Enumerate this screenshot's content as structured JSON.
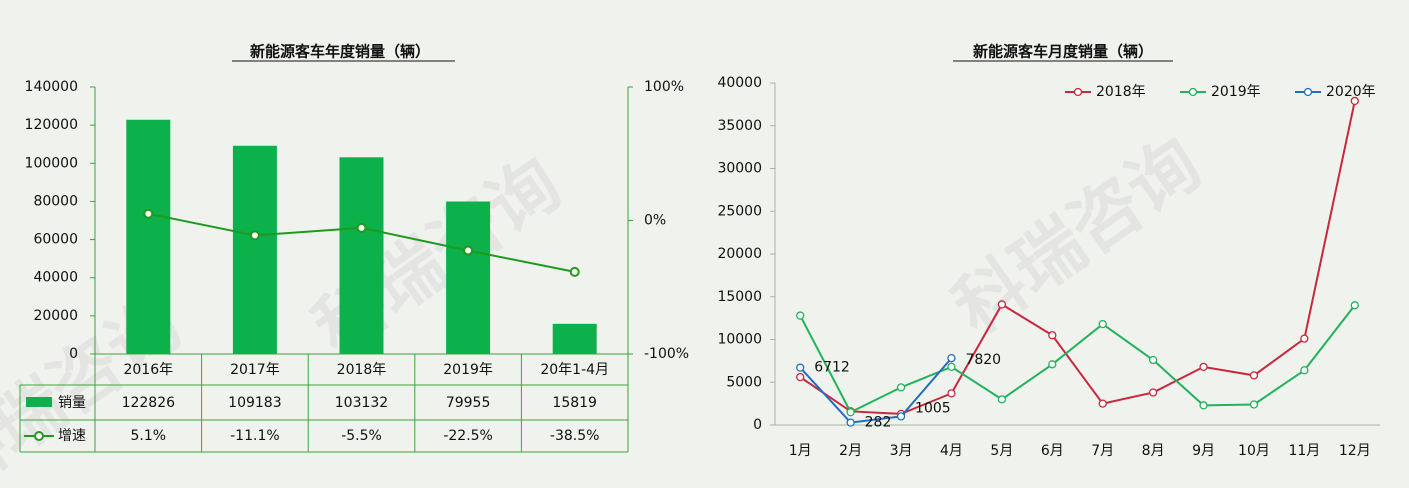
{
  "watermark": "科瑞咨询",
  "chart_data": [
    {
      "type": "bar",
      "title": "新能源客车年度销量（辆）",
      "categories": [
        "2016年",
        "2017年",
        "2018年",
        "2019年",
        "20年1-4月"
      ],
      "series": [
        {
          "name": "销量",
          "color": "#0cb14b",
          "values": [
            122826,
            109183,
            103132,
            79955,
            15819
          ]
        },
        {
          "name": "增速",
          "color": "#1e9a1e",
          "type": "line",
          "axis": "y2",
          "values": [
            5.1,
            -11.1,
            -5.5,
            -22.5,
            -38.5
          ],
          "value_labels": [
            "5.1%",
            "-11.1%",
            "-5.5%",
            "-22.5%",
            "-38.5%"
          ]
        }
      ],
      "ylim": [
        0,
        140000
      ],
      "yticks": [
        0,
        20000,
        40000,
        60000,
        80000,
        100000,
        120000,
        140000
      ],
      "y2lim": [
        -100,
        100
      ],
      "y2ticks": [
        {
          "value": -100,
          "label": "-100%"
        },
        {
          "value": 0,
          "label": "0%"
        },
        {
          "value": 100,
          "label": "100%"
        }
      ]
    },
    {
      "type": "line",
      "title": "新能源客车月度销量（辆）",
      "categories": [
        "1月",
        "2月",
        "3月",
        "4月",
        "5月",
        "6月",
        "7月",
        "8月",
        "9月",
        "10月",
        "11月",
        "12月"
      ],
      "series": [
        {
          "name": "2018年",
          "color": "#c8283c",
          "values": [
            5600,
            1600,
            1300,
            3700,
            14100,
            10500,
            2500,
            3800,
            6800,
            5800,
            10100,
            37900
          ]
        },
        {
          "name": "2019年",
          "color": "#1fb35a",
          "values": [
            12800,
            1500,
            4400,
            6800,
            3000,
            7100,
            11800,
            7600,
            2300,
            2400,
            6400,
            14000
          ]
        },
        {
          "name": "2020年",
          "color": "#1f6fc0",
          "values": [
            6712,
            282,
            1005,
            7820,
            null,
            null,
            null,
            null,
            null,
            null,
            null,
            null
          ],
          "data_labels": true
        }
      ],
      "ylim": [
        0,
        40000
      ],
      "yticks": [
        0,
        5000,
        10000,
        15000,
        20000,
        25000,
        30000,
        35000,
        40000
      ],
      "legend": "top-right"
    }
  ]
}
